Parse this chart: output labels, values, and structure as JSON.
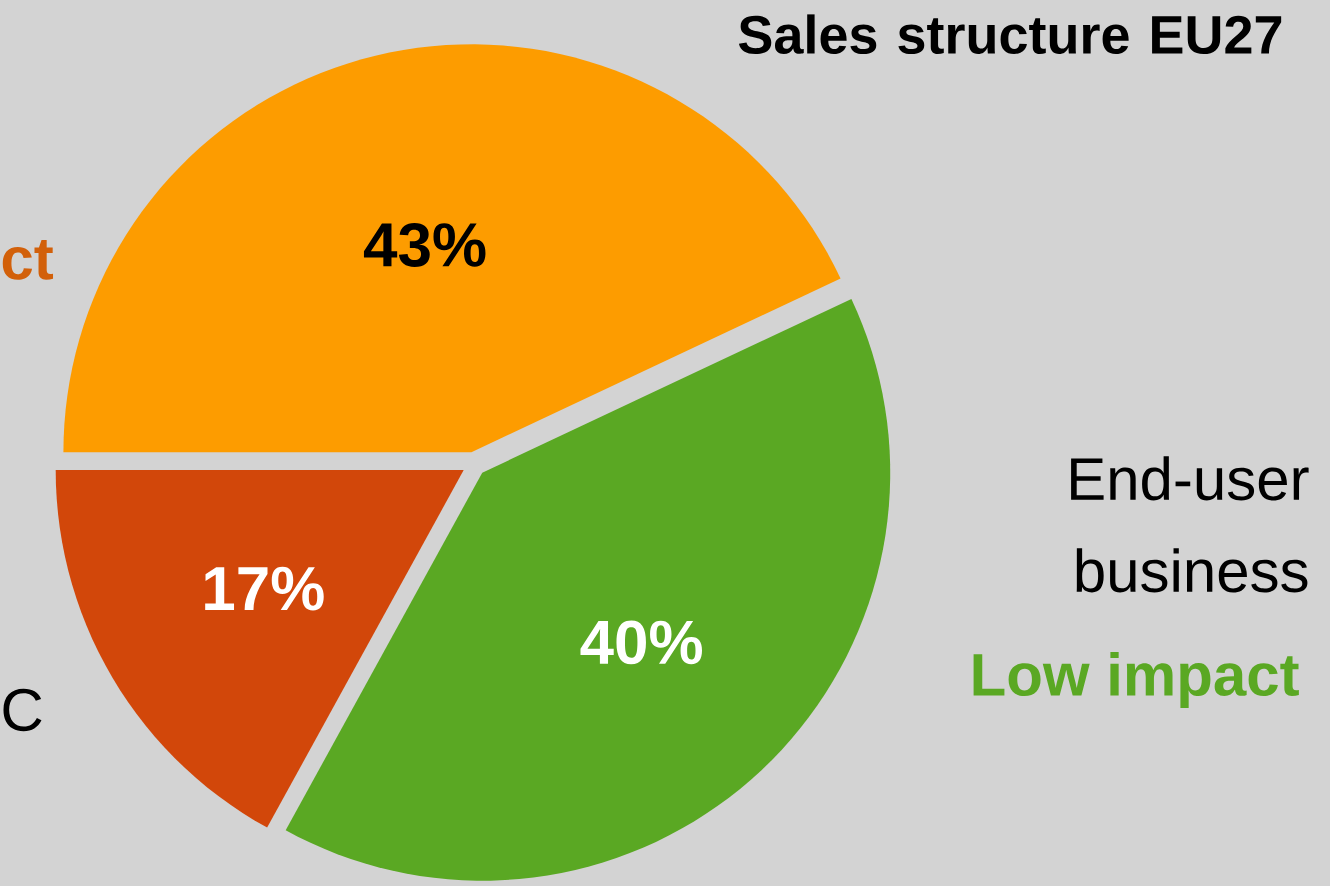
{
  "chart_data": {
    "type": "pie",
    "title": "Sales structure EU27",
    "categories": [
      null,
      "End-user business",
      "C"
    ],
    "values": [
      43,
      40,
      17
    ],
    "colors": [
      "#fd9c00",
      "#5aa823",
      "#d2470a"
    ],
    "value_labels": [
      "43%",
      "40%",
      "17%"
    ],
    "annotations": [
      "ct",
      "Low impact"
    ]
  }
}
